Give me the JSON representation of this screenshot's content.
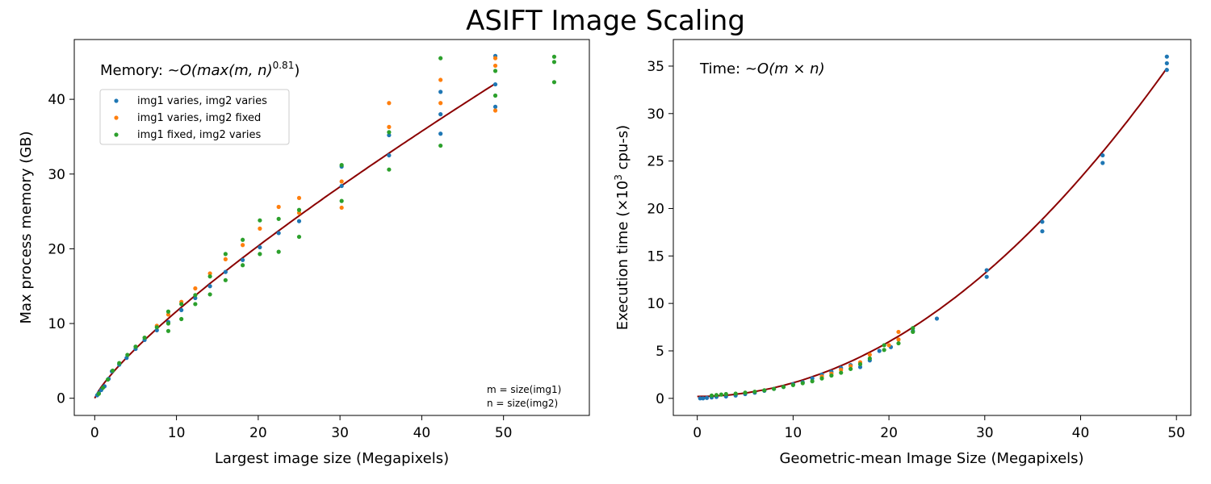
{
  "figure": {
    "title": "ASIFT Image Scaling"
  },
  "colors": {
    "img1_varies_img2_varies": "#1f77b4",
    "img1_varies_img2_fixed": "#ff7f0e",
    "img1_fixed_img2_varies": "#2ca02c",
    "fit": "#8b0000"
  },
  "chart_data": [
    {
      "type": "scatter",
      "xlabel": "Largest image size (Megapixels)",
      "ylabel": "Max process memory (GB)",
      "xlim": [
        -2.5,
        60.5
      ],
      "ylim": [
        -2.3,
        48
      ],
      "xticks": [
        0,
        10,
        20,
        30,
        40,
        50
      ],
      "yticks": [
        0,
        10,
        20,
        30,
        40
      ],
      "grid": false,
      "legend_position": "upper-left",
      "annotation": {
        "prefix": "Memory: ~",
        "formula": "O(max(m, n)",
        "exponent": "0.81",
        "suffix": ")"
      },
      "note": [
        "m = size(img1)",
        "n = size(img2)"
      ],
      "fit": {
        "label": "",
        "coefficient": 1.8,
        "exponent": 0.81,
        "x_range": [
          0,
          49
        ]
      },
      "series": [
        {
          "name": "img1 varies, img2 varies",
          "color_key": "img1_varies_img2_varies",
          "points": [
            [
              0.3,
              0.4
            ],
            [
              0.5,
              0.7
            ],
            [
              0.8,
              1.1
            ],
            [
              1.2,
              1.6
            ],
            [
              1.7,
              2.6
            ],
            [
              2.1,
              3.6
            ],
            [
              3,
              4.5
            ],
            [
              3.9,
              5.4
            ],
            [
              5,
              6.6
            ],
            [
              6.1,
              7.8
            ],
            [
              7.6,
              9.1
            ],
            [
              9,
              10.2
            ],
            [
              10.6,
              11.8
            ],
            [
              12.3,
              13.4
            ],
            [
              14.1,
              15
            ],
            [
              16,
              16.9
            ],
            [
              18.1,
              18.5
            ],
            [
              20.2,
              20.2
            ],
            [
              22.5,
              22.1
            ],
            [
              25,
              23.7
            ],
            [
              30.2,
              28.4
            ],
            [
              30.2,
              31
            ],
            [
              36,
              32.5
            ],
            [
              36,
              35.2
            ],
            [
              42.3,
              35.4
            ],
            [
              42.3,
              38
            ],
            [
              42.3,
              41
            ],
            [
              49,
              39
            ],
            [
              49,
              42
            ],
            [
              49,
              45.8
            ]
          ]
        },
        {
          "name": "img1 varies, img2 fixed",
          "color_key": "img1_varies_img2_fixed",
          "points": [
            [
              7.6,
              9.7
            ],
            [
              9,
              11.2
            ],
            [
              10.6,
              12.9
            ],
            [
              12.3,
              14.7
            ],
            [
              14.1,
              16.7
            ],
            [
              16,
              18.6
            ],
            [
              18.1,
              20.5
            ],
            [
              20.2,
              22.7
            ],
            [
              22.5,
              25.6
            ],
            [
              25,
              26.8
            ],
            [
              25,
              24.8
            ],
            [
              30.2,
              25.5
            ],
            [
              30.2,
              29
            ],
            [
              36,
              36.3
            ],
            [
              36,
              39.5
            ],
            [
              42.3,
              42.6
            ],
            [
              42.3,
              39.5
            ],
            [
              49,
              38.5
            ],
            [
              49,
              44.5
            ],
            [
              49,
              45.5
            ]
          ]
        },
        {
          "name": "img1 fixed, img2 varies",
          "color_key": "img1_fixed_img2_varies",
          "points": [
            [
              0.5,
              0.6
            ],
            [
              1,
              1.4
            ],
            [
              1.6,
              2.5
            ],
            [
              2.2,
              3.7
            ],
            [
              3,
              4.7
            ],
            [
              4,
              5.8
            ],
            [
              5,
              6.9
            ],
            [
              6.1,
              8.1
            ],
            [
              7.6,
              9.5
            ],
            [
              9,
              9
            ],
            [
              9,
              10
            ],
            [
              9,
              11.6
            ],
            [
              10.6,
              10.6
            ],
            [
              10.6,
              12.6
            ],
            [
              12.3,
              12.6
            ],
            [
              12.3,
              13.8
            ],
            [
              14.1,
              13.9
            ],
            [
              14.1,
              16.3
            ],
            [
              16,
              15.8
            ],
            [
              16,
              19.3
            ],
            [
              18.1,
              17.8
            ],
            [
              18.1,
              21.2
            ],
            [
              20.2,
              19.3
            ],
            [
              20.2,
              23.8
            ],
            [
              22.5,
              19.6
            ],
            [
              22.5,
              24
            ],
            [
              25,
              21.6
            ],
            [
              25,
              25.2
            ],
            [
              30.2,
              26.4
            ],
            [
              30.2,
              31.2
            ],
            [
              36,
              30.6
            ],
            [
              36,
              35.6
            ],
            [
              42.3,
              33.8
            ],
            [
              42.3,
              45.5
            ],
            [
              49,
              40.5
            ],
            [
              49,
              43.8
            ],
            [
              56.2,
              42.3
            ],
            [
              56.2,
              45
            ],
            [
              56.2,
              45.7
            ]
          ]
        }
      ]
    },
    {
      "type": "scatter",
      "xlabel": "Geometric-mean Image Size (Megapixels)",
      "ylabel_prefix": "Execution time (×10",
      "ylabel_exponent": "3",
      "ylabel_suffix": " cpu-s)",
      "xlim": [
        -2.5,
        51.5
      ],
      "ylim": [
        -1.8,
        37.8
      ],
      "xticks": [
        0,
        10,
        20,
        30,
        40,
        50
      ],
      "yticks": [
        0,
        5,
        10,
        15,
        20,
        25,
        30,
        35
      ],
      "grid": false,
      "annotation": {
        "prefix": "Time: ~",
        "formula": "O(m × n)"
      },
      "fit": {
        "label": "",
        "quad": 0.0144,
        "const": 0.2,
        "x_range": [
          0,
          49
        ]
      },
      "series": [
        {
          "name": "img1 varies, img2 varies",
          "color_key": "img1_varies_img2_varies",
          "points": [
            [
              0.3,
              0
            ],
            [
              0.6,
              0
            ],
            [
              1,
              0.05
            ],
            [
              1.5,
              0.1
            ],
            [
              2,
              0.15
            ],
            [
              3,
              0.2
            ],
            [
              4,
              0.3
            ],
            [
              5,
              0.45
            ],
            [
              6,
              0.6
            ],
            [
              7,
              0.8
            ],
            [
              8,
              1
            ],
            [
              9,
              1.2
            ],
            [
              10,
              1.5
            ],
            [
              11,
              1.7
            ],
            [
              12,
              2.1
            ],
            [
              13,
              2.5
            ],
            [
              14,
              2.8
            ],
            [
              15,
              3.2
            ],
            [
              16,
              3.5
            ],
            [
              17,
              3.3
            ],
            [
              18,
              4
            ],
            [
              19,
              5
            ],
            [
              20.2,
              5.4
            ],
            [
              22.5,
              7.1
            ],
            [
              25,
              8.4
            ],
            [
              30.2,
              12.8
            ],
            [
              30.2,
              13.5
            ],
            [
              36,
              17.6
            ],
            [
              36,
              18.6
            ],
            [
              42.3,
              24.8
            ],
            [
              42.3,
              25.6
            ],
            [
              49,
              34.6
            ],
            [
              49,
              35.3
            ],
            [
              49,
              36
            ]
          ]
        },
        {
          "name": "img1 varies, img2 fixed",
          "color_key": "img1_varies_img2_fixed",
          "points": [
            [
              13,
              2.3
            ],
            [
              14,
              2.6
            ],
            [
              15,
              3
            ],
            [
              16,
              3.4
            ],
            [
              17,
              3.8
            ],
            [
              18,
              4.6
            ],
            [
              20,
              5.6
            ],
            [
              21,
              6.2
            ],
            [
              21,
              7
            ]
          ]
        },
        {
          "name": "img1 fixed, img2 varies",
          "color_key": "img1_fixed_img2_varies",
          "points": [
            [
              1.5,
              0.3
            ],
            [
              2,
              0.35
            ],
            [
              2.5,
              0.4
            ],
            [
              3,
              0.45
            ],
            [
              4,
              0.5
            ],
            [
              5,
              0.6
            ],
            [
              6,
              0.7
            ],
            [
              7,
              0.85
            ],
            [
              8,
              1
            ],
            [
              9,
              1.2
            ],
            [
              10,
              1.4
            ],
            [
              11,
              1.6
            ],
            [
              12,
              1.8
            ],
            [
              13,
              2.1
            ],
            [
              14,
              2.4
            ],
            [
              15,
              2.7
            ],
            [
              16,
              3.1
            ],
            [
              17,
              3.6
            ],
            [
              18,
              4.2
            ],
            [
              19.5,
              5.1
            ],
            [
              19.5,
              5.6
            ],
            [
              21,
              5.8
            ],
            [
              22.5,
              7
            ],
            [
              22.5,
              7.4
            ]
          ]
        }
      ]
    }
  ]
}
